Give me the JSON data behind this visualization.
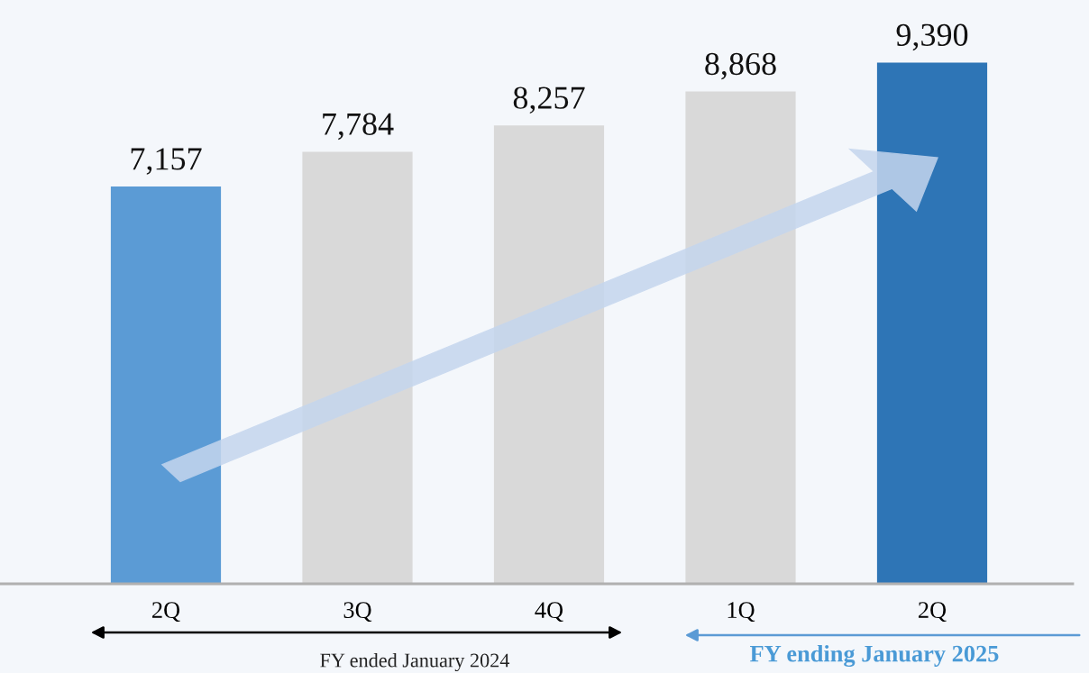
{
  "chart_data": {
    "type": "bar",
    "categories": [
      "2Q",
      "3Q",
      "4Q",
      "1Q",
      "2Q"
    ],
    "values": [
      7157,
      7784,
      8257,
      8868,
      9390
    ],
    "colors": [
      "#5b9bd5",
      "#d9d9d9",
      "#d9d9d9",
      "#d9d9d9",
      "#2e75b6"
    ],
    "value_labels": [
      "7,157",
      "7,784",
      "8,257",
      "8,868",
      "9,390"
    ],
    "tick_labels": "x",
    "grid": false,
    "annotations": [
      "FY ended January 2024",
      "FY ending January 2025"
    ]
  }
}
